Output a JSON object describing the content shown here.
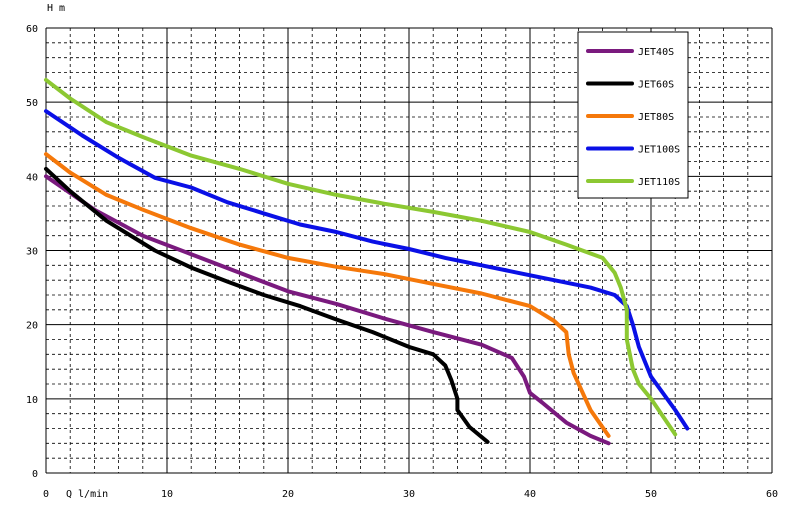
{
  "chart_data": {
    "type": "line",
    "title": "",
    "ylabel": "H m",
    "xlabel": "Q l/min",
    "xlim": [
      0,
      60
    ],
    "ylim": [
      0,
      60
    ],
    "x_ticks": [
      0,
      10,
      20,
      30,
      40,
      50,
      60
    ],
    "y_ticks": [
      0,
      10,
      20,
      30,
      40,
      50,
      60
    ],
    "grid": "major solid, minor dashed",
    "legend_position": "top-right",
    "series": [
      {
        "name": "JET40S",
        "color": "#7a1a7e",
        "x": [
          0,
          4,
          8,
          12,
          16,
          20,
          24,
          28,
          32,
          36,
          38.5,
          39.5,
          40,
          41,
          43,
          45,
          46.5
        ],
        "y": [
          40,
          35.5,
          32,
          29.5,
          27,
          24.5,
          22.8,
          20.8,
          19,
          17.3,
          15.5,
          13,
          10.8,
          9.5,
          6.8,
          5,
          4
        ]
      },
      {
        "name": "JET60S",
        "color": "#000000",
        "x": [
          0,
          2,
          5,
          9,
          12,
          15,
          18,
          21,
          24,
          27,
          30,
          32,
          33,
          33.5,
          34,
          34,
          35,
          36.5
        ],
        "y": [
          41,
          38,
          34,
          30,
          27.7,
          25.8,
          24,
          22.5,
          20.7,
          19,
          17,
          16,
          14.5,
          12.5,
          10,
          8.5,
          6.2,
          4.2
        ]
      },
      {
        "name": "JET80S",
        "color": "#f5780a",
        "x": [
          0,
          2,
          5,
          8,
          12,
          16,
          20,
          24,
          28,
          32,
          36,
          40,
          42,
          43,
          43.2,
          43.6,
          45,
          46.5
        ],
        "y": [
          43,
          40.5,
          37.5,
          35.5,
          33,
          30.8,
          29,
          27.8,
          26.8,
          25.5,
          24.2,
          22.5,
          20.5,
          19,
          16,
          13.5,
          8.5,
          5
        ]
      },
      {
        "name": "JET100S",
        "color": "#0a10e6",
        "x": [
          0,
          3,
          6,
          9,
          12,
          15,
          18,
          21,
          24,
          27,
          30,
          33,
          36,
          39,
          42,
          45,
          47,
          48,
          48.5,
          49,
          50,
          52,
          53
        ],
        "y": [
          48.8,
          45.5,
          42.5,
          39.8,
          38.5,
          36.5,
          35,
          33.5,
          32.5,
          31.2,
          30.2,
          29,
          28,
          27,
          26,
          25,
          24,
          22.5,
          20,
          17,
          13,
          8.5,
          6
        ]
      },
      {
        "name": "JET110S",
        "color": "#8cc832",
        "x": [
          0,
          2,
          5,
          8,
          12,
          16,
          20,
          24,
          28,
          32,
          36,
          40,
          43,
          46,
          47,
          47.5,
          48,
          48,
          48.5,
          49,
          50,
          52
        ],
        "y": [
          53,
          50.5,
          47.3,
          45.3,
          42.8,
          41,
          39,
          37.5,
          36.3,
          35.2,
          34,
          32.5,
          30.8,
          29,
          27,
          25,
          22,
          18,
          14,
          12,
          10,
          5.2
        ]
      }
    ]
  }
}
